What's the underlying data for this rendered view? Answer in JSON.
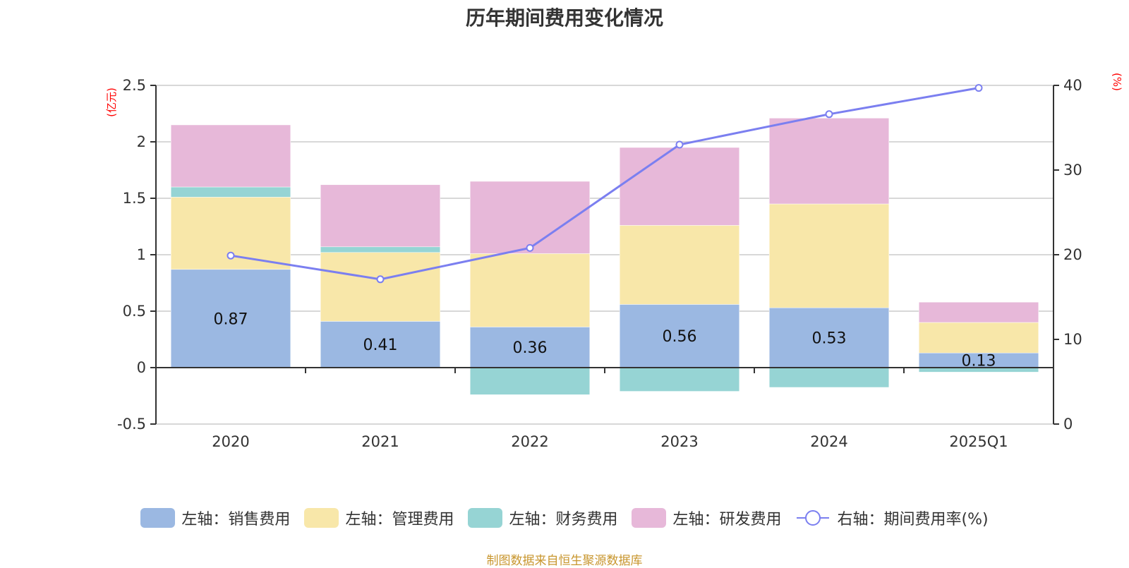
{
  "title": "历年期间费用变化情况",
  "footer": "制图数据来自恒生聚源数据库",
  "chart_data": {
    "type": "bar",
    "stacked": true,
    "title": "历年期间费用变化情况",
    "categories": [
      "2020",
      "2021",
      "2022",
      "2023",
      "2024",
      "2025Q1"
    ],
    "left_axis": {
      "label": "(亿元)",
      "min": -0.5,
      "max": 2.5,
      "ticks": [
        "-0.5",
        "0",
        "0.5",
        "1",
        "1.5",
        "2",
        "2.5"
      ],
      "tick_values": [
        -0.5,
        0,
        0.5,
        1,
        1.5,
        2,
        2.5
      ]
    },
    "right_axis": {
      "label": "(%)",
      "min": 0,
      "max": 40,
      "ticks": [
        "0",
        "10",
        "20",
        "30",
        "40"
      ],
      "tick_values": [
        0,
        10,
        20,
        30,
        40
      ]
    },
    "grid": true,
    "legend_position": "bottom",
    "series": [
      {
        "name": "左轴：销售费用",
        "type": "bar",
        "axis": "left",
        "color": "#9bb8e2",
        "values": [
          0.87,
          0.41,
          0.36,
          0.56,
          0.53,
          0.13
        ],
        "show_labels": true
      },
      {
        "name": "左轴：管理费用",
        "type": "bar",
        "axis": "left",
        "color": "#f8e7a9",
        "values": [
          0.64,
          0.61,
          0.65,
          0.7,
          0.92,
          0.27
        ]
      },
      {
        "name": "左轴：财务费用",
        "type": "bar",
        "axis": "left",
        "color": "#96d4d4",
        "values": [
          0.09,
          0.05,
          -0.24,
          -0.21,
          -0.175,
          -0.04
        ]
      },
      {
        "name": "左轴：研发费用",
        "type": "bar",
        "axis": "left",
        "color": "#e7b8d9",
        "values": [
          0.55,
          0.55,
          0.64,
          0.69,
          0.76,
          0.18
        ]
      },
      {
        "name": "右轴：期间费用率(%)",
        "type": "line",
        "axis": "right",
        "color": "#7b7ff0",
        "values": [
          19.9,
          17.1,
          20.8,
          33.0,
          36.6,
          39.7
        ]
      }
    ],
    "data_labels": [
      "0.87",
      "0.41",
      "0.36",
      "0.56",
      "0.53",
      "0.13"
    ]
  }
}
